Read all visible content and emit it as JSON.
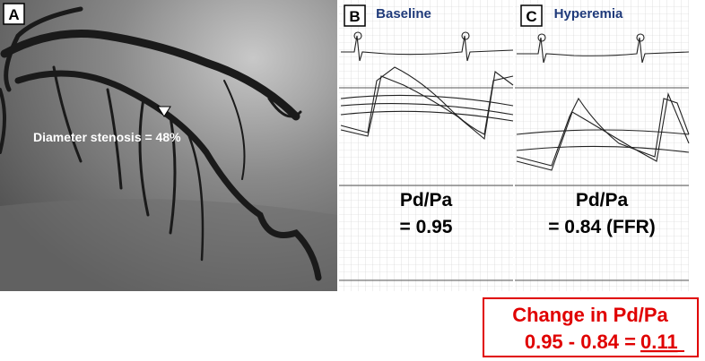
{
  "panels": [
    {
      "label": "A",
      "annotation": "Diameter stenosis = 48%"
    },
    {
      "label": "B",
      "title": "Baseline",
      "metric": "Pd/Pa",
      "value": "= 0.95"
    },
    {
      "label": "C",
      "title": "Hyperemia",
      "metric": "Pd/Pa",
      "value": "= 0.84 (FFR)"
    }
  ],
  "summary": {
    "title": "Change in Pd/Pa",
    "equation": "0.95 - 0.84 =",
    "result": "0.11"
  }
}
